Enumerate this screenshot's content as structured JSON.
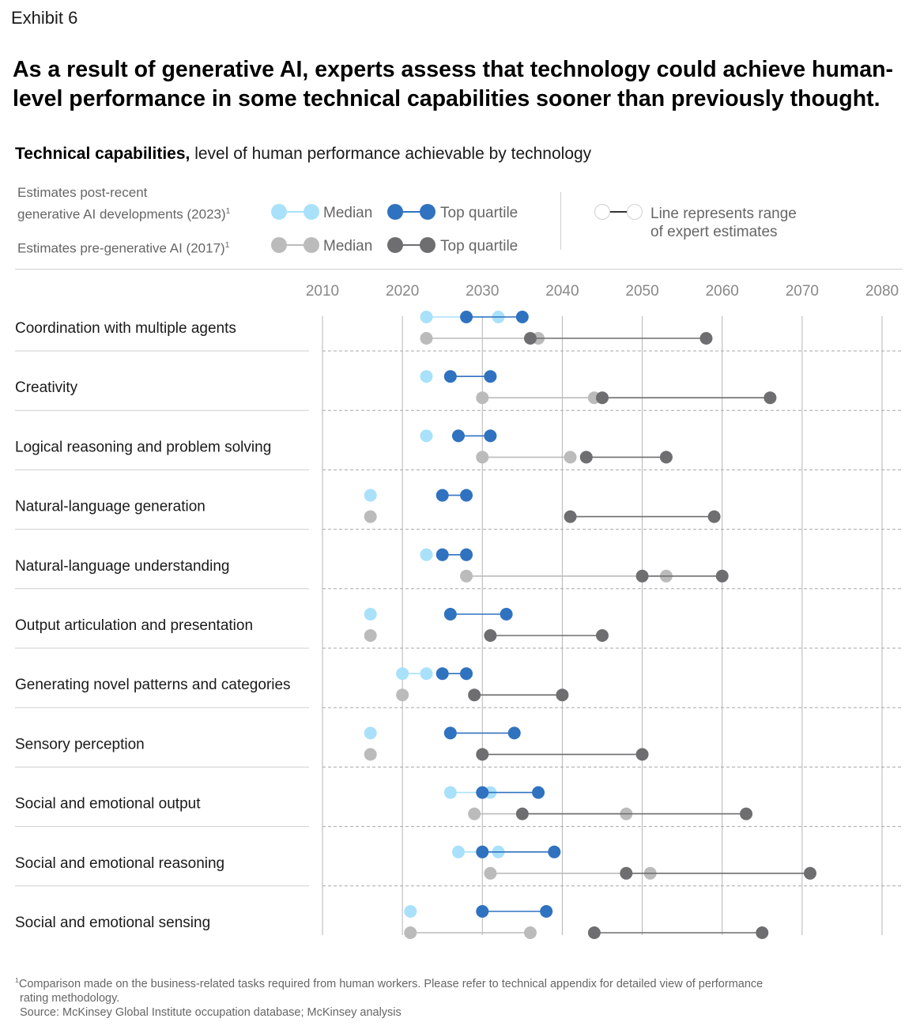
{
  "exhibit": "Exhibit 6",
  "headline": "As a result of generative AI, experts assess that technology could achieve human-level performance in some technical capabilities sooner than previously thought.",
  "subtitle": {
    "bold": "Technical capabilities,",
    "rest": " level of human performance achievable by technology"
  },
  "legend": {
    "post_label_line1": "Estimates post-recent",
    "post_label_line2": "generative AI developments (2023)",
    "pre_label": "Estimates pre-generative AI (2017)",
    "footnote_marker": "1",
    "median": "Median",
    "top_quartile": "Top quartile",
    "range_line1": "Line represents range",
    "range_line2": "of expert estimates"
  },
  "colors": {
    "post_median": "#a9e1fb",
    "post_top": "#2f72c0",
    "pre_median": "#bbbbbb",
    "pre_top": "#6e6e70",
    "grid": "#b5b5b5",
    "separator": "#cfcfcf"
  },
  "chart_data": {
    "type": "dumbbell",
    "title": "Technical capabilities, level of human performance achievable by technology",
    "x_ticks": [
      "2010",
      "2020",
      "2030",
      "2040",
      "2050",
      "2060",
      "2070",
      "2080"
    ],
    "xlim": [
      2010,
      2080
    ],
    "series_names": [
      "2023 Median",
      "2023 Top quartile",
      "2017 Median",
      "2017 Top quartile"
    ],
    "categories": [
      {
        "name": "Coordination with multiple agents",
        "post_median": [
          2023,
          2032
        ],
        "post_top": [
          2028,
          2035
        ],
        "pre_median": [
          2023,
          2037
        ],
        "pre_top": [
          2036,
          2058
        ]
      },
      {
        "name": "Creativity",
        "post_median": [
          2023,
          2023
        ],
        "post_top": [
          2026,
          2031
        ],
        "pre_median": [
          2030,
          2044
        ],
        "pre_top": [
          2045,
          2066
        ]
      },
      {
        "name": "Logical reasoning and problem solving",
        "post_median": [
          2023,
          2023
        ],
        "post_top": [
          2027,
          2031
        ],
        "pre_median": [
          2030,
          2041
        ],
        "pre_top": [
          2043,
          2053
        ]
      },
      {
        "name": "Natural-language generation",
        "post_median": [
          2016,
          2016
        ],
        "post_top": [
          2025,
          2028
        ],
        "pre_median": [
          2016,
          2016
        ],
        "pre_top": [
          2041,
          2059
        ]
      },
      {
        "name": "Natural-language understanding",
        "post_median": [
          2023,
          2023
        ],
        "post_top": [
          2025,
          2028
        ],
        "pre_median": [
          2028,
          2053
        ],
        "pre_top": [
          2050,
          2060
        ]
      },
      {
        "name": "Output articulation and presentation",
        "post_median": [
          2016,
          2016
        ],
        "post_top": [
          2026,
          2033
        ],
        "pre_median": [
          2016,
          2016
        ],
        "pre_top": [
          2031,
          2045
        ]
      },
      {
        "name": "Generating novel patterns and categories",
        "post_median": [
          2020,
          2023
        ],
        "post_top": [
          2025,
          2028
        ],
        "pre_median": [
          2020,
          2020
        ],
        "pre_top": [
          2029,
          2040
        ]
      },
      {
        "name": "Sensory perception",
        "post_median": [
          2016,
          2016
        ],
        "post_top": [
          2026,
          2034
        ],
        "pre_median": [
          2016,
          2016
        ],
        "pre_top": [
          2030,
          2050
        ]
      },
      {
        "name": "Social and emotional output",
        "post_median": [
          2026,
          2031
        ],
        "post_top": [
          2030,
          2037
        ],
        "pre_median": [
          2029,
          2048
        ],
        "pre_top": [
          2035,
          2063
        ]
      },
      {
        "name": "Social and emotional reasoning",
        "post_median": [
          2027,
          2032
        ],
        "post_top": [
          2030,
          2039
        ],
        "pre_median": [
          2031,
          2051
        ],
        "pre_top": [
          2048,
          2071
        ]
      },
      {
        "name": "Social and emotional sensing",
        "post_median": [
          2021,
          2021
        ],
        "post_top": [
          2030,
          2038
        ],
        "pre_median": [
          2021,
          2036
        ],
        "pre_top": [
          2044,
          2065
        ]
      }
    ]
  },
  "footnote": {
    "marker": "1",
    "line1": "Comparison made on the business-related tasks required from human workers. Please refer to technical appendix for detailed view of performance",
    "line2": "rating methodology.",
    "source": "Source: McKinsey Global Institute occupation database; McKinsey analysis"
  }
}
